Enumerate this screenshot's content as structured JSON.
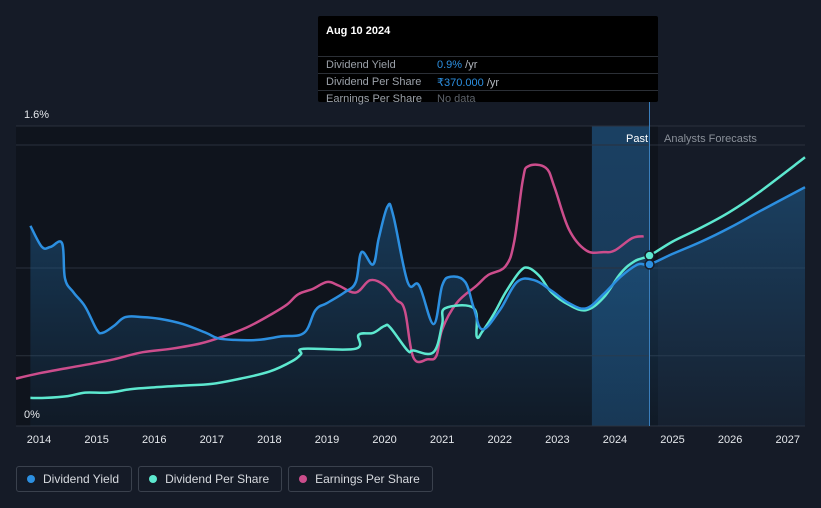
{
  "tooltip": {
    "date": "Aug 10 2024",
    "rows": [
      {
        "label": "Dividend Yield",
        "value": "0.9%",
        "unit": " /yr"
      },
      {
        "label": "Dividend Per Share",
        "value": "₹370.000",
        "unit": " /yr"
      },
      {
        "label": "Earnings Per Share",
        "value": "No data",
        "unit": ""
      }
    ]
  },
  "legend": [
    {
      "label": "Dividend Yield",
      "color": "#2c8fe0"
    },
    {
      "label": "Dividend Per Share",
      "color": "#5de8cf"
    },
    {
      "label": "Earnings Per Share",
      "color": "#cc4d8c"
    }
  ],
  "chart_data": {
    "type": "line",
    "y_top_label": "1.6%",
    "y_bottom_label": "0%",
    "ylim": [
      0,
      1.6
    ],
    "xlim": [
      2013.6,
      2027.3
    ],
    "x_ticks": [
      "2014",
      "2015",
      "2016",
      "2017",
      "2018",
      "2019",
      "2020",
      "2021",
      "2022",
      "2023",
      "2024",
      "2025",
      "2026",
      "2027"
    ],
    "past_label": "Past",
    "forecast_label": "Analysts Forecasts",
    "forecast_start": 2024.6,
    "past_band_start": 2023.6,
    "grid": true,
    "series": [
      {
        "name": "Dividend Yield",
        "color": "#2c8fe0",
        "points": [
          [
            2013.85,
            1.14
          ],
          [
            2014.05,
            1.02
          ],
          [
            2014.2,
            1.02
          ],
          [
            2014.4,
            1.04
          ],
          [
            2014.45,
            0.84
          ],
          [
            2014.6,
            0.76
          ],
          [
            2014.8,
            0.68
          ],
          [
            2015.0,
            0.55
          ],
          [
            2015.1,
            0.53
          ],
          [
            2015.3,
            0.57
          ],
          [
            2015.5,
            0.62
          ],
          [
            2015.8,
            0.62
          ],
          [
            2016.1,
            0.61
          ],
          [
            2016.5,
            0.58
          ],
          [
            2016.9,
            0.53
          ],
          [
            2017.1,
            0.5
          ],
          [
            2017.4,
            0.49
          ],
          [
            2017.8,
            0.49
          ],
          [
            2018.2,
            0.51
          ],
          [
            2018.6,
            0.53
          ],
          [
            2018.8,
            0.66
          ],
          [
            2019.0,
            0.7
          ],
          [
            2019.3,
            0.76
          ],
          [
            2019.5,
            0.82
          ],
          [
            2019.6,
            0.99
          ],
          [
            2019.8,
            0.92
          ],
          [
            2019.9,
            1.07
          ],
          [
            2020.05,
            1.25
          ],
          [
            2020.15,
            1.2
          ],
          [
            2020.4,
            0.82
          ],
          [
            2020.6,
            0.8
          ],
          [
            2020.85,
            0.58
          ],
          [
            2021.0,
            0.8
          ],
          [
            2021.15,
            0.85
          ],
          [
            2021.4,
            0.82
          ],
          [
            2021.55,
            0.67
          ],
          [
            2021.7,
            0.55
          ],
          [
            2022.0,
            0.66
          ],
          [
            2022.3,
            0.82
          ],
          [
            2022.6,
            0.83
          ],
          [
            2022.9,
            0.77
          ],
          [
            2023.2,
            0.7
          ],
          [
            2023.5,
            0.67
          ],
          [
            2023.8,
            0.75
          ],
          [
            2024.1,
            0.85
          ],
          [
            2024.4,
            0.92
          ],
          [
            2024.6,
            0.92
          ],
          [
            2025.0,
            0.98
          ],
          [
            2025.5,
            1.05
          ],
          [
            2026.0,
            1.13
          ],
          [
            2026.5,
            1.22
          ],
          [
            2027.3,
            1.36
          ]
        ]
      },
      {
        "name": "Dividend Per Share",
        "color": "#5de8cf",
        "points": [
          [
            2013.85,
            0.16
          ],
          [
            2014.1,
            0.16
          ],
          [
            2014.5,
            0.17
          ],
          [
            2014.8,
            0.19
          ],
          [
            2015.2,
            0.19
          ],
          [
            2015.6,
            0.21
          ],
          [
            2016.0,
            0.22
          ],
          [
            2016.5,
            0.23
          ],
          [
            2017.0,
            0.24
          ],
          [
            2017.5,
            0.27
          ],
          [
            2018.0,
            0.31
          ],
          [
            2018.4,
            0.37
          ],
          [
            2018.55,
            0.41
          ],
          [
            2018.6,
            0.44
          ],
          [
            2019.5,
            0.44
          ],
          [
            2019.55,
            0.52
          ],
          [
            2019.8,
            0.53
          ],
          [
            2020.0,
            0.57
          ],
          [
            2020.1,
            0.56
          ],
          [
            2020.4,
            0.43
          ],
          [
            2020.5,
            0.43
          ],
          [
            2020.85,
            0.42
          ],
          [
            2021.0,
            0.58
          ],
          [
            2021.05,
            0.67
          ],
          [
            2021.55,
            0.67
          ],
          [
            2021.6,
            0.51
          ],
          [
            2021.7,
            0.54
          ],
          [
            2021.9,
            0.64
          ],
          [
            2022.1,
            0.76
          ],
          [
            2022.35,
            0.88
          ],
          [
            2022.5,
            0.9
          ],
          [
            2022.7,
            0.85
          ],
          [
            2022.9,
            0.76
          ],
          [
            2023.2,
            0.69
          ],
          [
            2023.5,
            0.66
          ],
          [
            2023.8,
            0.73
          ],
          [
            2024.1,
            0.87
          ],
          [
            2024.35,
            0.94
          ],
          [
            2024.6,
            0.97
          ],
          [
            2025.0,
            1.05
          ],
          [
            2025.5,
            1.13
          ],
          [
            2026.0,
            1.22
          ],
          [
            2026.5,
            1.33
          ],
          [
            2027.3,
            1.53
          ]
        ]
      },
      {
        "name": "Earnings Per Share",
        "color": "#cc4d8c",
        "points": [
          [
            2013.6,
            0.27
          ],
          [
            2014.0,
            0.3
          ],
          [
            2014.5,
            0.33
          ],
          [
            2015.0,
            0.36
          ],
          [
            2015.3,
            0.38
          ],
          [
            2015.8,
            0.42
          ],
          [
            2016.3,
            0.44
          ],
          [
            2016.8,
            0.47
          ],
          [
            2017.2,
            0.51
          ],
          [
            2017.6,
            0.56
          ],
          [
            2018.0,
            0.63
          ],
          [
            2018.3,
            0.69
          ],
          [
            2018.5,
            0.75
          ],
          [
            2018.75,
            0.78
          ],
          [
            2019.0,
            0.82
          ],
          [
            2019.2,
            0.8
          ],
          [
            2019.5,
            0.76
          ],
          [
            2019.75,
            0.83
          ],
          [
            2020.0,
            0.8
          ],
          [
            2020.2,
            0.72
          ],
          [
            2020.35,
            0.66
          ],
          [
            2020.5,
            0.39
          ],
          [
            2020.75,
            0.38
          ],
          [
            2020.9,
            0.4
          ],
          [
            2021.0,
            0.55
          ],
          [
            2021.25,
            0.7
          ],
          [
            2021.6,
            0.8
          ],
          [
            2021.8,
            0.86
          ],
          [
            2022.1,
            0.91
          ],
          [
            2022.25,
            1.05
          ],
          [
            2022.4,
            1.4
          ],
          [
            2022.5,
            1.48
          ],
          [
            2022.8,
            1.47
          ],
          [
            2022.95,
            1.36
          ],
          [
            2023.2,
            1.12
          ],
          [
            2023.5,
            1.0
          ],
          [
            2023.8,
            0.99
          ],
          [
            2024.0,
            1.0
          ],
          [
            2024.3,
            1.07
          ],
          [
            2024.5,
            1.08
          ]
        ]
      }
    ]
  }
}
